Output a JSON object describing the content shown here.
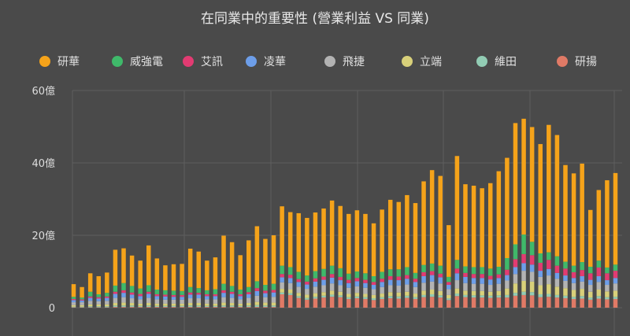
{
  "chart_data": {
    "type": "bar",
    "stacked": true,
    "title": "在同業中的重要性 (營業利益 VS 同業)",
    "ylim": [
      0,
      60
    ],
    "y_ticks": [
      "0",
      "20億",
      "40億",
      "60億"
    ],
    "y_tick_values": [
      0,
      20,
      40,
      60
    ],
    "legend_position": "top",
    "grid": true,
    "series": [
      {
        "name": "研華",
        "color": "#f5a31a",
        "values": [
          3.5,
          2.9,
          5.1,
          5.0,
          5.6,
          9.9,
          9.6,
          8.4,
          7.7,
          11.0,
          8.6,
          6.9,
          7.3,
          7.5,
          10.6,
          10.1,
          8.2,
          8.8,
          13.3,
          12.1,
          9.5,
          12.9,
          15.2,
          12.7,
          13.4,
          16.4,
          15.2,
          16.2,
          15.9,
          16.2,
          16.7,
          18.0,
          17.2,
          16.5,
          16.9,
          16.4,
          14.6,
          17.2,
          19.2,
          18.6,
          19.9,
          19.3,
          23.1,
          25.8,
          24.8,
          14.3,
          28.7,
          22.7,
          22.5,
          21.8,
          23.6,
          26.4,
          27.7,
          33.5,
          32.0,
          31.7,
          30.2,
          35.2,
          33.5,
          26.7,
          25.5,
          27.2,
          15.7,
          19.5,
          24.1,
          25.3
        ]
      },
      {
        "name": "威強電",
        "color": "#3fb96a",
        "values": [
          0.6,
          0.5,
          1.3,
          0.8,
          1.0,
          1.7,
          2.0,
          1.8,
          1.5,
          1.8,
          1.3,
          1.2,
          1.2,
          1.1,
          1.5,
          1.3,
          1.1,
          1.4,
          1.8,
          1.6,
          1.3,
          1.4,
          1.9,
          1.6,
          1.7,
          2.3,
          2.1,
          2.0,
          1.7,
          2.0,
          2.1,
          2.3,
          2.4,
          1.7,
          1.8,
          1.8,
          1.6,
          1.9,
          1.9,
          2.0,
          2.2,
          1.6,
          2.0,
          2.1,
          2.2,
          1.4,
          2.4,
          1.8,
          1.9,
          1.9,
          2.0,
          2.1,
          3.2,
          4.1,
          5.4,
          3.7,
          2.6,
          2.1,
          2.6,
          1.9,
          1.8,
          2.2,
          1.8,
          1.9,
          1.6,
          1.7
        ]
      },
      {
        "name": "艾訊",
        "color": "#e23b72",
        "values": [
          0.3,
          0.3,
          0.4,
          0.4,
          0.4,
          0.6,
          0.7,
          0.6,
          0.6,
          0.6,
          0.5,
          0.5,
          0.5,
          0.5,
          0.6,
          0.5,
          0.5,
          0.5,
          0.7,
          0.6,
          0.5,
          0.6,
          0.8,
          0.7,
          0.7,
          0.9,
          0.9,
          0.8,
          0.8,
          0.9,
          0.9,
          1.0,
          0.9,
          0.9,
          0.9,
          0.9,
          0.8,
          0.9,
          1.0,
          1.0,
          1.0,
          0.9,
          1.1,
          1.1,
          1.0,
          0.8,
          1.3,
          1.1,
          1.1,
          1.1,
          1.0,
          1.0,
          1.5,
          2.2,
          2.5,
          2.6,
          2.2,
          2.5,
          2.0,
          1.9,
          1.6,
          1.7,
          1.8,
          2.4,
          1.9,
          2.0
        ]
      },
      {
        "name": "凌華",
        "color": "#6d9ee9",
        "values": [
          0.6,
          0.5,
          0.8,
          0.7,
          0.8,
          1.1,
          1.2,
          1.0,
          0.9,
          1.1,
          0.9,
          0.9,
          0.8,
          0.8,
          1.0,
          1.0,
          0.9,
          0.9,
          1.2,
          1.1,
          0.9,
          1.0,
          1.3,
          1.1,
          1.2,
          1.4,
          1.4,
          1.3,
          1.2,
          1.4,
          1.5,
          1.6,
          1.4,
          1.3,
          1.4,
          1.3,
          1.2,
          1.4,
          1.5,
          1.5,
          1.6,
          1.4,
          1.8,
          1.8,
          1.7,
          1.2,
          1.9,
          1.7,
          1.6,
          1.6,
          1.5,
          1.6,
          1.5,
          1.9,
          2.1,
          2.0,
          1.7,
          1.8,
          1.6,
          1.5,
          1.4,
          1.5,
          1.4,
          1.6,
          1.3,
          1.5
        ]
      },
      {
        "name": "飛捷",
        "color": "#b3b3b3",
        "values": [
          0.8,
          0.8,
          1.0,
          0.9,
          1.0,
          1.4,
          1.5,
          1.3,
          1.2,
          1.4,
          1.2,
          1.1,
          1.1,
          1.1,
          1.3,
          1.3,
          1.2,
          1.2,
          1.5,
          1.4,
          1.2,
          1.4,
          1.7,
          1.5,
          1.6,
          1.8,
          1.8,
          1.7,
          1.6,
          1.8,
          1.9,
          2.0,
          1.8,
          1.7,
          1.8,
          1.7,
          1.6,
          1.8,
          1.9,
          1.9,
          2.0,
          1.8,
          2.2,
          2.2,
          2.1,
          1.6,
          2.3,
          2.1,
          2.0,
          2.0,
          1.9,
          2.0,
          2.2,
          2.6,
          2.8,
          2.7,
          2.3,
          2.4,
          2.2,
          2.0,
          1.9,
          2.0,
          1.9,
          2.1,
          1.8,
          2.0
        ]
      },
      {
        "name": "立端",
        "color": "#d8d07a",
        "values": [
          0.4,
          0.4,
          0.5,
          0.5,
          0.5,
          0.7,
          0.8,
          0.7,
          0.6,
          0.7,
          0.6,
          0.6,
          0.6,
          0.6,
          0.7,
          0.7,
          0.6,
          0.6,
          0.8,
          0.7,
          0.6,
          0.7,
          0.9,
          0.8,
          0.8,
          1.0,
          1.0,
          0.9,
          0.9,
          1.0,
          1.0,
          1.1,
          1.0,
          0.9,
          1.0,
          0.9,
          0.9,
          1.0,
          1.1,
          1.1,
          1.1,
          1.0,
          1.2,
          1.3,
          1.2,
          0.9,
          1.4,
          1.2,
          1.2,
          1.2,
          1.1,
          1.2,
          1.8,
          2.6,
          3.0,
          2.9,
          2.5,
          2.7,
          2.3,
          2.1,
          1.9,
          2.0,
          1.6,
          1.8,
          1.6,
          1.7
        ]
      },
      {
        "name": "維田",
        "color": "#92ccb4",
        "values": [
          0.2,
          0.2,
          0.3,
          0.3,
          0.3,
          0.4,
          0.4,
          0.4,
          0.3,
          0.4,
          0.3,
          0.3,
          0.3,
          0.3,
          0.4,
          0.4,
          0.3,
          0.3,
          0.4,
          0.4,
          0.3,
          0.4,
          0.5,
          0.4,
          0.4,
          0.5,
          0.5,
          0.5,
          0.5,
          0.5,
          0.5,
          0.6,
          0.5,
          0.5,
          0.5,
          0.5,
          0.5,
          0.5,
          0.6,
          0.6,
          0.6,
          0.5,
          0.6,
          0.7,
          0.6,
          0.5,
          0.7,
          0.6,
          0.6,
          0.6,
          0.6,
          0.6,
          0.7,
          0.8,
          0.9,
          0.9,
          0.8,
          0.8,
          0.7,
          0.7,
          0.6,
          0.7,
          0.6,
          0.7,
          0.6,
          0.6
        ]
      },
      {
        "name": "研揚",
        "color": "#e07a66",
        "values": [
          0.1,
          0.1,
          0.1,
          0.1,
          0.1,
          0.2,
          0.2,
          0.2,
          0.2,
          0.2,
          0.2,
          0.2,
          0.2,
          0.2,
          0.2,
          0.2,
          0.2,
          0.2,
          0.2,
          0.2,
          0.2,
          0.2,
          0.2,
          0.2,
          0.2,
          3.7,
          3.5,
          2.7,
          2.2,
          2.5,
          2.8,
          3.0,
          2.9,
          2.4,
          2.6,
          2.4,
          2.1,
          2.4,
          2.6,
          2.5,
          2.7,
          2.4,
          2.9,
          3.0,
          2.8,
          2.1,
          3.2,
          2.9,
          2.8,
          2.8,
          2.7,
          2.8,
          2.8,
          3.3,
          3.5,
          3.4,
          2.9,
          3.0,
          2.8,
          2.6,
          2.4,
          2.5,
          2.2,
          2.5,
          2.3,
          2.4
        ]
      }
    ]
  }
}
